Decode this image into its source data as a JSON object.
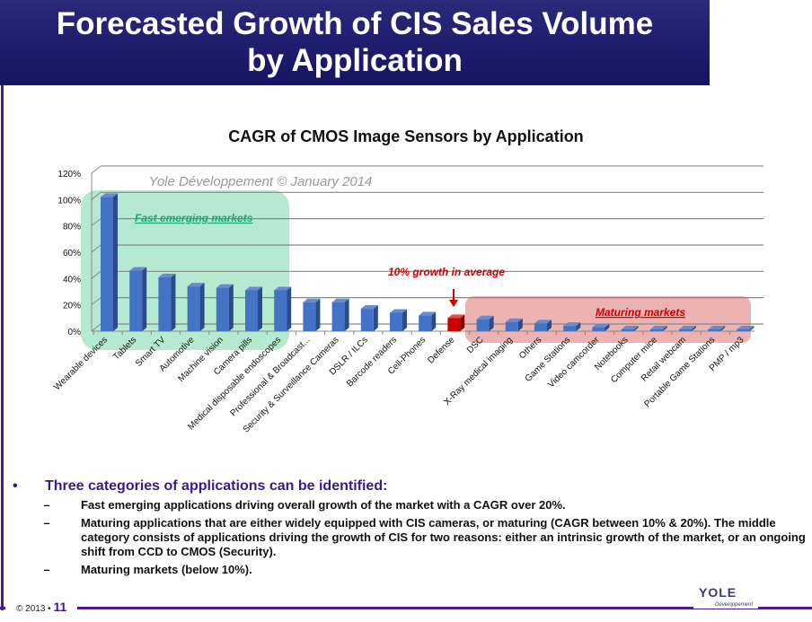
{
  "slide": {
    "title_line1": "Forecasted Growth of CIS Sales Volume",
    "title_line2": "by Application",
    "page_prefix": "© 2013 •",
    "page_number": "11",
    "logo": "YOLE",
    "logo_sub": "Développement"
  },
  "chart_data": {
    "type": "bar",
    "title": "CAGR of CMOS Image Sensors by Application",
    "watermark": "Yole Développement © January 2014",
    "ylim": [
      0,
      120
    ],
    "yticks": [
      "0%",
      "20%",
      "40%",
      "60%",
      "80%",
      "100%",
      "120%"
    ],
    "categories": [
      "Wearable devices",
      "Tablets",
      "Smart TV",
      "Automotive",
      "Machine vision",
      "Camera pills",
      "Medical disposable endoscopes",
      "Professional & Broadcast...",
      "Security & Surveillance Cameras",
      "DSLR / ILCs",
      "Barcode readers",
      "Cell-Phones",
      "Defense",
      "DSC",
      "X-Ray medical imaging",
      "Others",
      "Game Stations",
      "Video camcorder",
      "Notebooks",
      "Computer mice",
      "Retail webcam",
      "Portable Game Stations",
      "PMP / mp3"
    ],
    "values": [
      102,
      46,
      41,
      34,
      33,
      31,
      31,
      22,
      22,
      17,
      14,
      12,
      10,
      9,
      7,
      6,
      4,
      3,
      0.5,
      0.5,
      0.5,
      0.5,
      0.5
    ],
    "highlight_index": 12,
    "colors": {
      "bar": "#4472c4",
      "highlight": "#cc0000",
      "fast": "#a8e6c8",
      "mature": "#eaa4a4"
    },
    "annotations": {
      "fast": "Fast emerging markets",
      "average": "10% growth in average",
      "mature": "Maturing  markets"
    }
  },
  "bullets": {
    "heading": "Three categories of applications can be identified:",
    "items": [
      "Fast emerging applications driving overall growth of the market with a CAGR over 20%.",
      "Maturing applications that are either widely equipped with CIS cameras, or maturing (CAGR between 10% & 20%). The middle category consists of applications driving the growth of CIS for two reasons: either an intrinsic growth of the market, or an ongoing shift from CCD to CMOS (Security).",
      "Maturing markets (below 10%)."
    ]
  }
}
